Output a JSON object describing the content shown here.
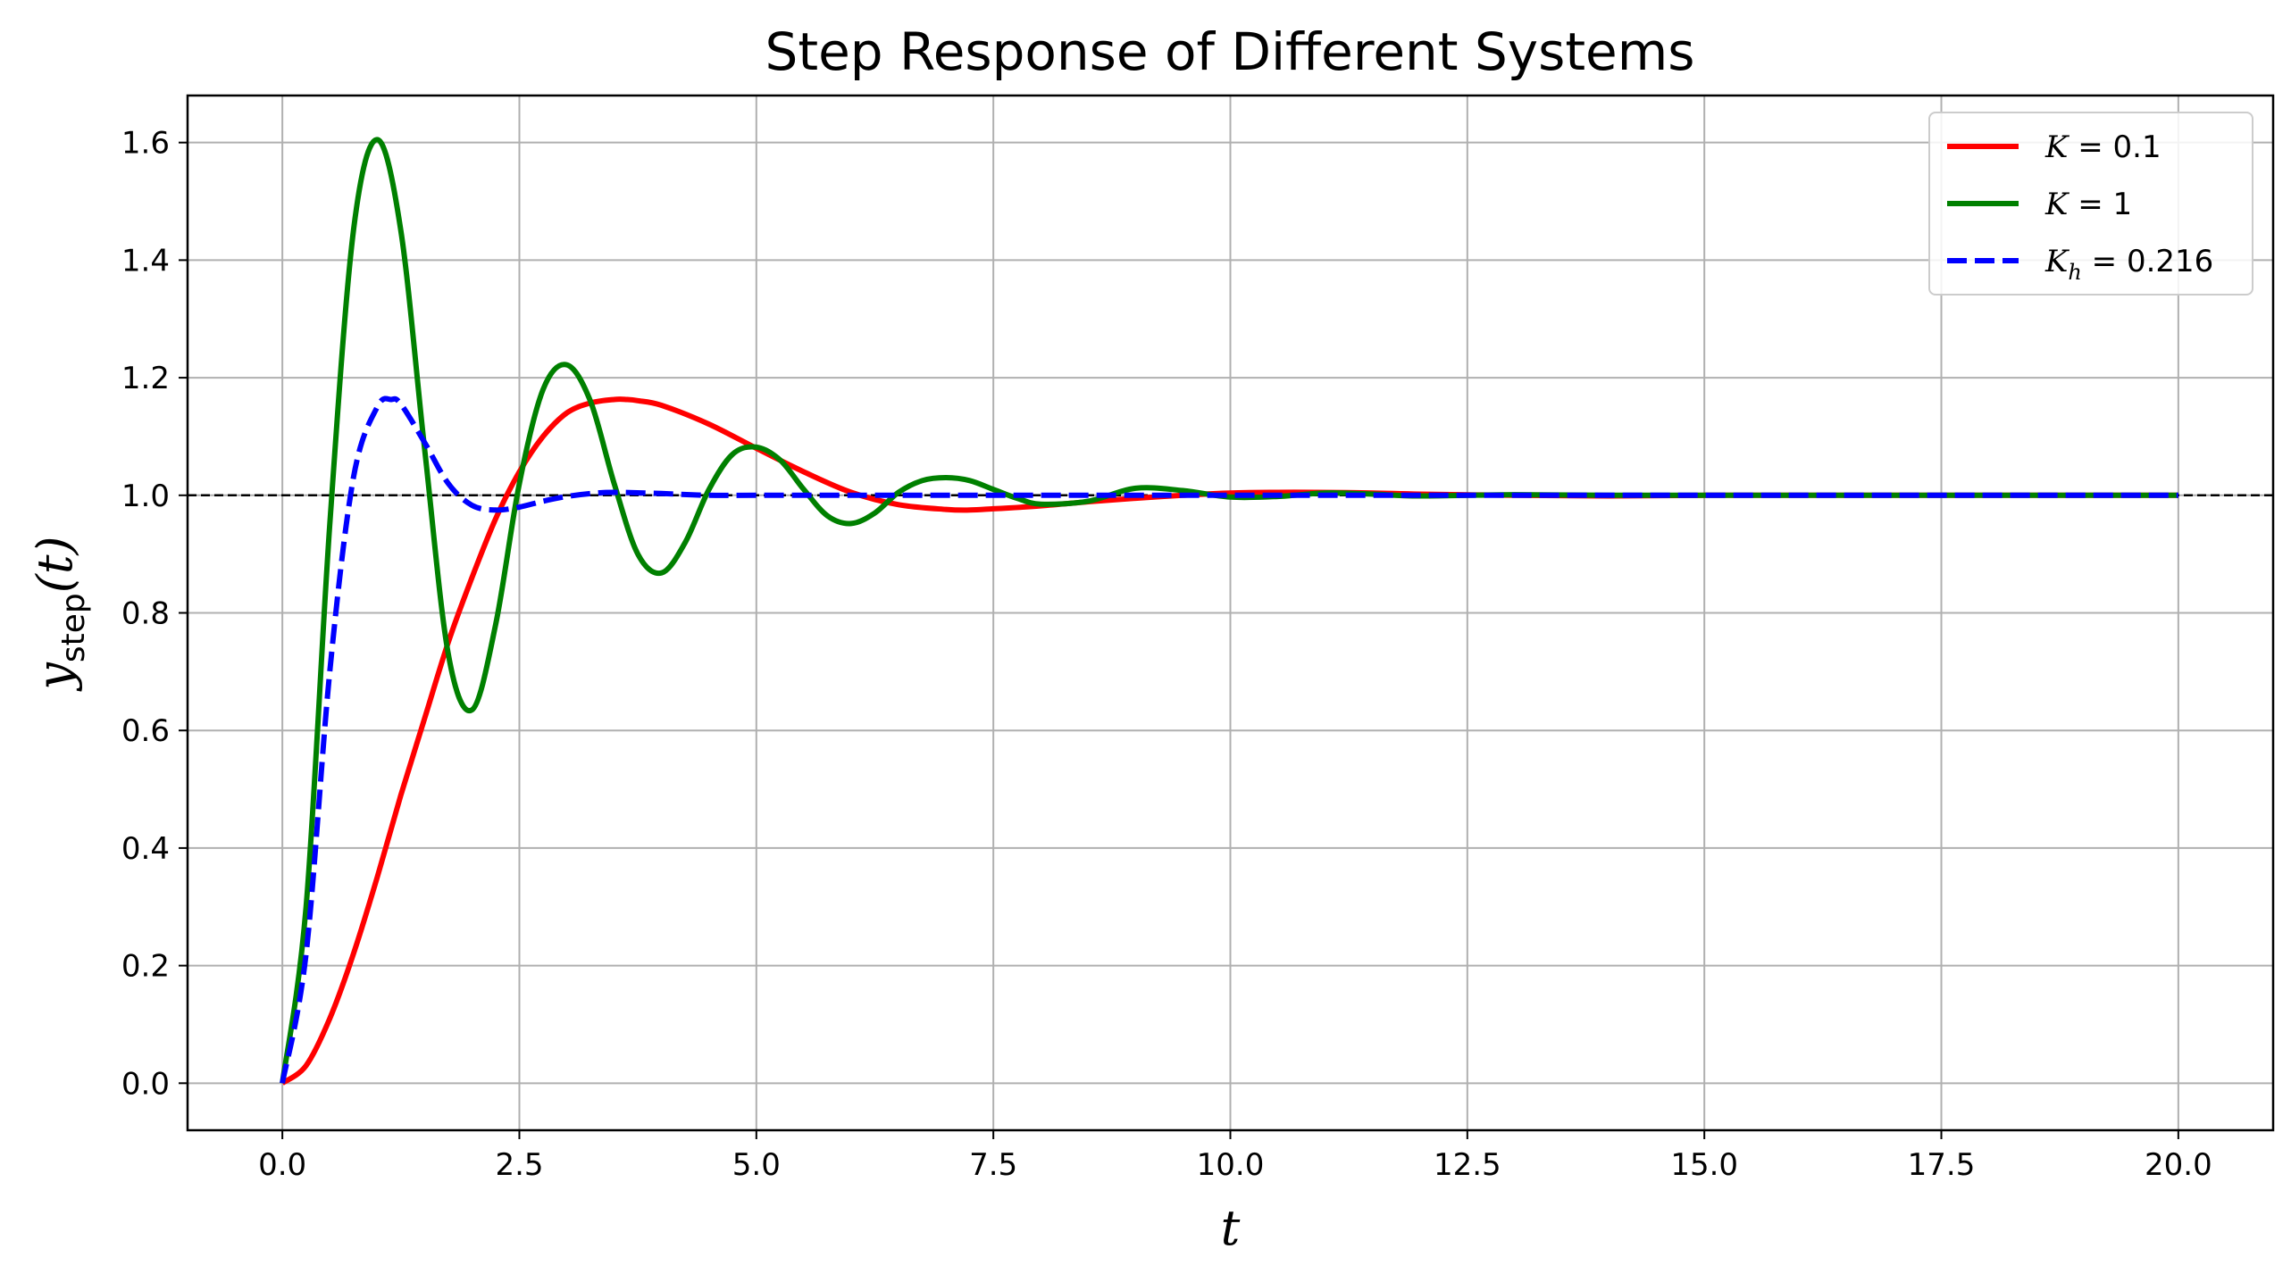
{
  "chart_data": {
    "type": "line",
    "title": "Step Response of Different Systems",
    "xlabel": "t",
    "ylabel": "y_step(t)",
    "ylabel_main": "y",
    "ylabel_sub": "step",
    "ylabel_tail": "(t)",
    "xlim": [
      -1.0,
      21.0
    ],
    "ylim": [
      -0.08,
      1.68
    ],
    "xticks": [
      0.0,
      2.5,
      5.0,
      7.5,
      10.0,
      12.5,
      15.0,
      17.5,
      20.0
    ],
    "xtick_labels": [
      "0.0",
      "2.5",
      "5.0",
      "7.5",
      "10.0",
      "12.5",
      "15.0",
      "17.5",
      "20.0"
    ],
    "yticks": [
      0.0,
      0.2,
      0.4,
      0.6,
      0.8,
      1.0,
      1.2,
      1.4,
      1.6
    ],
    "ytick_labels": [
      "0.0",
      "0.2",
      "0.4",
      "0.6",
      "0.8",
      "1.0",
      "1.2",
      "1.4",
      "1.6"
    ],
    "grid": true,
    "legend_position": "top-right",
    "reference_line": {
      "y": 1.0,
      "color": "#000000",
      "style": "dashed"
    },
    "series": [
      {
        "name": "K = 0.1",
        "legend_main": "K",
        "legend_sub": "",
        "legend_value": "= 0.1",
        "color": "#ff0000",
        "style": "solid",
        "x": [
          0,
          0.25,
          0.5,
          0.75,
          1.0,
          1.25,
          1.5,
          1.75,
          2.0,
          2.25,
          2.5,
          2.75,
          3.0,
          3.25,
          3.5,
          3.63,
          3.75,
          4.0,
          4.5,
          5.0,
          5.5,
          6.0,
          6.5,
          7.0,
          7.25,
          7.5,
          8.0,
          8.5,
          9.0,
          9.5,
          10.0,
          10.5,
          10.9,
          11.5,
          12.0,
          13.0,
          14.0,
          15.0,
          16.0,
          17.0,
          18.0,
          19.0,
          20.0
        ],
        "values": [
          0.0,
          0.03,
          0.11,
          0.22,
          0.35,
          0.49,
          0.62,
          0.75,
          0.86,
          0.96,
          1.04,
          1.1,
          1.14,
          1.157,
          1.163,
          1.163,
          1.161,
          1.153,
          1.121,
          1.08,
          1.04,
          1.005,
          0.984,
          0.976,
          0.975,
          0.977,
          0.982,
          0.989,
          0.995,
          1.0,
          1.004,
          1.005,
          1.005,
          1.004,
          1.002,
          1.0,
          0.999,
          1.0,
          1.0,
          1.0,
          1.0,
          1.0,
          1.0
        ]
      },
      {
        "name": "K = 1",
        "legend_main": "K",
        "legend_sub": "",
        "legend_value": "= 1",
        "color": "#008000",
        "style": "solid",
        "x": [
          0,
          0.25,
          0.5,
          0.75,
          1.0,
          1.25,
          1.5,
          1.75,
          2.0,
          2.25,
          2.5,
          2.75,
          3.0,
          3.25,
          3.5,
          3.75,
          4.0,
          4.25,
          4.5,
          4.75,
          5.0,
          5.25,
          5.5,
          5.75,
          6.0,
          6.25,
          6.5,
          6.75,
          7.0,
          7.25,
          7.5,
          7.75,
          8.0,
          8.5,
          9.0,
          9.5,
          10.0,
          10.5,
          11.0,
          11.5,
          12.0,
          13.0,
          14.0,
          15.0,
          16.0,
          17.0,
          18.0,
          19.0,
          20.0
        ],
        "values": [
          0.0,
          0.3,
          0.95,
          1.45,
          1.605,
          1.45,
          1.08,
          0.73,
          0.635,
          0.78,
          1.02,
          1.18,
          1.222,
          1.16,
          1.02,
          0.9,
          0.868,
          0.92,
          1.01,
          1.07,
          1.082,
          1.06,
          1.01,
          0.965,
          0.952,
          0.97,
          1.005,
          1.025,
          1.03,
          1.025,
          1.01,
          0.995,
          0.985,
          0.99,
          1.012,
          1.008,
          0.997,
          0.998,
          1.004,
          1.002,
          0.999,
          1.001,
          1.0,
          1.0,
          1.0,
          1.0,
          1.0,
          1.0,
          1.0
        ]
      },
      {
        "name": "K_h = 0.216",
        "legend_main": "K",
        "legend_sub": "h",
        "legend_value": "= 0.216",
        "color": "#0000ff",
        "style": "dashed",
        "x": [
          0,
          0.25,
          0.5,
          0.75,
          1.0,
          1.15,
          1.25,
          1.5,
          1.75,
          2.0,
          2.25,
          2.5,
          2.75,
          3.0,
          3.25,
          3.5,
          4.0,
          4.5,
          5.0,
          6.0,
          7.0,
          8.0,
          9.0,
          10.0,
          12.0,
          14.0,
          16.0,
          18.0,
          20.0
        ],
        "values": [
          0.0,
          0.22,
          0.7,
          1.03,
          1.15,
          1.163,
          1.155,
          1.09,
          1.02,
          0.983,
          0.975,
          0.98,
          0.99,
          0.998,
          1.003,
          1.005,
          1.003,
          1.0,
          1.0,
          1.0,
          1.0,
          1.0,
          1.0,
          1.0,
          1.0,
          1.0,
          1.0,
          1.0,
          1.0
        ]
      }
    ]
  }
}
